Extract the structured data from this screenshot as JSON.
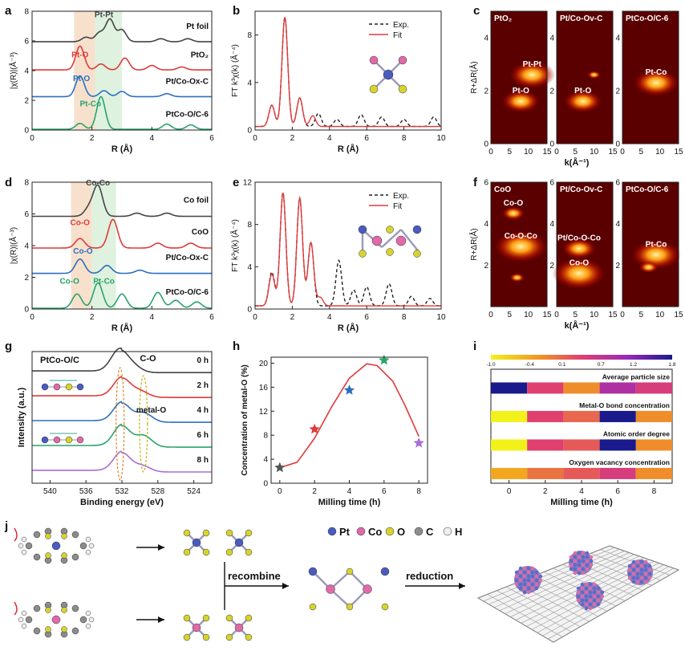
{
  "panel_letters": [
    "a",
    "b",
    "c",
    "d",
    "e",
    "f",
    "g",
    "h",
    "i",
    "j"
  ],
  "chart_data": [
    {
      "id": "a",
      "type": "line",
      "xlabel": "R (Å)",
      "ylabel": "|χ(R)|(Å⁻³)",
      "xlim": [
        0,
        6
      ],
      "ylim": [
        0,
        8
      ],
      "xticks": [
        "0",
        "2",
        "4",
        "6"
      ],
      "yticks": [
        "0",
        "2",
        "4",
        "6",
        "8"
      ],
      "series": [
        {
          "name": "Pt foil",
          "color": "#444444",
          "offset": 5.9,
          "peaks": [
            [
              1.8,
              0.3
            ],
            [
              2.25,
              0.6
            ],
            [
              2.6,
              1.5
            ],
            [
              3.0,
              0.8
            ],
            [
              4.3,
              0.2
            ],
            [
              5.2,
              0.2
            ]
          ]
        },
        {
          "name": "PtO₂",
          "color": "#e03a3a",
          "offset": 4.0,
          "peaks": [
            [
              1.6,
              1.6
            ],
            [
              2.3,
              0.4
            ],
            [
              3.1,
              0.8
            ],
            [
              4.0,
              0.3
            ],
            [
              5.0,
              0.2
            ]
          ]
        },
        {
          "name": "Pt/Co-Ox-C",
          "color": "#2e6fbf",
          "offset": 2.2,
          "peaks": [
            [
              1.6,
              1.4
            ],
            [
              2.4,
              0.4
            ],
            [
              3.0,
              0.35
            ],
            [
              4.5,
              0.2
            ]
          ]
        },
        {
          "name": "PtCo-O/C-6",
          "color": "#2aa36a",
          "offset": 0.0,
          "peaks": [
            [
              1.6,
              0.4
            ],
            [
              2.3,
              2.2
            ],
            [
              4.5,
              0.35
            ],
            [
              5.3,
              0.3
            ]
          ]
        }
      ],
      "annotations": [
        {
          "text": "Pt-Pt",
          "x": 2.4,
          "y": 7.6
        },
        {
          "text": "Pt-O",
          "x": 1.6,
          "y": 4.9
        },
        {
          "text": "Pt-O",
          "x": 1.65,
          "y": 3.3
        },
        {
          "text": "Pt-Co",
          "x": 1.95,
          "y": 1.6
        }
      ],
      "shaded_regions": [
        {
          "from": 1.4,
          "to": 2.1,
          "color": "#f6dcc4"
        },
        {
          "from": 2.1,
          "to": 3.0,
          "color": "#d9efd9"
        }
      ]
    },
    {
      "id": "b",
      "type": "line",
      "xlabel": "R (Å)",
      "ylabel": "FT k³χ(k) (Å⁻⁴)",
      "xlim": [
        0,
        10
      ],
      "ylim": [
        0,
        10
      ],
      "xticks": [
        "0",
        "2",
        "4",
        "6",
        "8",
        "10"
      ],
      "yticks": [
        "0",
        "4",
        "8"
      ],
      "legend": [
        "Exp.",
        "Fit"
      ],
      "series": [
        {
          "name": "Exp.",
          "color": "#222222",
          "style": "dashed",
          "peaks": [
            [
              0.9,
              1.8
            ],
            [
              1.6,
              9.2
            ],
            [
              2.4,
              2.4
            ],
            [
              3.4,
              1.1
            ],
            [
              4.4,
              0.6
            ],
            [
              5.7,
              1.0
            ],
            [
              6.8,
              0.8
            ],
            [
              8.0,
              0.6
            ],
            [
              9.6,
              0.8
            ]
          ]
        },
        {
          "name": "Fit",
          "color": "#e03a3a",
          "style": "solid",
          "peaks": [
            [
              0.9,
              1.8
            ],
            [
              1.6,
              9.2
            ],
            [
              2.4,
              2.4
            ],
            [
              3.1,
              0.9
            ]
          ]
        }
      ]
    },
    {
      "id": "c",
      "type": "heatmap",
      "xlabel": "k(Å⁻¹)",
      "ylabel": "R+ΔR(Å)",
      "xlim": [
        0,
        15
      ],
      "ylim": [
        0,
        5
      ],
      "xticks": [
        "0",
        "5",
        "10",
        "15"
      ],
      "yticks": [
        "0",
        "2",
        "4"
      ],
      "panels": [
        {
          "name": "PtO₂",
          "labels": [
            "Pt-Pt",
            "Pt-O"
          ],
          "blobs": [
            [
              11,
              2.6,
              1.2
            ],
            [
              8,
              1.6,
              1.0
            ]
          ]
        },
        {
          "name": "Pt/Co-Ov-C",
          "labels": [
            "Pt-O"
          ],
          "blobs": [
            [
              7,
              1.6,
              1.0
            ],
            [
              10,
              2.6,
              0.35
            ]
          ]
        },
        {
          "name": "PtCo-O/C-6",
          "labels": [
            "Pt-Co"
          ],
          "blobs": [
            [
              9,
              2.3,
              1.2
            ]
          ]
        }
      ]
    },
    {
      "id": "d",
      "type": "line",
      "xlabel": "R (Å)",
      "ylabel": "|χ(R)|(Å⁻³)",
      "xlim": [
        0,
        6
      ],
      "ylim": [
        0,
        8
      ],
      "xticks": [
        "0",
        "2",
        "4",
        "6"
      ],
      "yticks": [
        "0",
        "2",
        "4",
        "6",
        "8"
      ],
      "series": [
        {
          "name": "Co foil",
          "color": "#444444",
          "offset": 5.8,
          "peaks": [
            [
              1.9,
              0.5
            ],
            [
              2.2,
              1.9
            ],
            [
              3.5,
              0.2
            ],
            [
              4.5,
              0.2
            ]
          ]
        },
        {
          "name": "CoO",
          "color": "#e03a3a",
          "offset": 3.8,
          "peaks": [
            [
              1.6,
              0.6
            ],
            [
              2.7,
              1.8
            ],
            [
              4.2,
              0.3
            ],
            [
              5.3,
              0.3
            ]
          ]
        },
        {
          "name": "Pt/Co-Ox-C",
          "color": "#2e6fbf",
          "offset": 2.2,
          "peaks": [
            [
              1.6,
              0.9
            ],
            [
              2.5,
              0.5
            ],
            [
              3.6,
              0.2
            ]
          ]
        },
        {
          "name": "PtCo-O/C-6",
          "color": "#2aa36a",
          "offset": 0.0,
          "peaks": [
            [
              1.5,
              0.9
            ],
            [
              2.2,
              1.6
            ],
            [
              3.0,
              0.9
            ],
            [
              4.2,
              1.0
            ],
            [
              4.8,
              0.5
            ],
            [
              5.5,
              0.4
            ]
          ]
        }
      ],
      "annotations": [
        {
          "text": "Co-Co",
          "x": 2.2,
          "y": 7.8
        },
        {
          "text": "Co-O",
          "x": 1.6,
          "y": 5.3
        },
        {
          "text": "Co-O",
          "x": 1.7,
          "y": 3.5
        },
        {
          "text": "Co-O",
          "x": 1.25,
          "y": 1.6
        },
        {
          "text": "Pt-Co",
          "x": 2.4,
          "y": 1.6
        }
      ],
      "shaded_regions": [
        {
          "from": 1.3,
          "to": 2.0,
          "color": "#f6dcc4"
        },
        {
          "from": 2.0,
          "to": 2.8,
          "color": "#d9efd9"
        }
      ]
    },
    {
      "id": "e",
      "type": "line",
      "xlabel": "R (Å)",
      "ylabel": "FT k³χ(k) (Å⁻⁴)",
      "xlim": [
        0,
        10
      ],
      "ylim": [
        0,
        12
      ],
      "xticks": [
        "0",
        "2",
        "4",
        "6",
        "8",
        "10"
      ],
      "yticks": [
        "0",
        "4",
        "8",
        "12"
      ],
      "legend": [
        "Exp.",
        "Fit"
      ],
      "series": [
        {
          "name": "Exp.",
          "color": "#222222",
          "style": "dashed",
          "peaks": [
            [
              0.9,
              3.2
            ],
            [
              1.5,
              10.7
            ],
            [
              2.4,
              10.2
            ],
            [
              3.0,
              6.0
            ],
            [
              4.5,
              4.3
            ],
            [
              5.3,
              1.5
            ],
            [
              6.0,
              1.8
            ],
            [
              7.2,
              2.1
            ],
            [
              8.4,
              0.9
            ],
            [
              9.4,
              0.7
            ]
          ]
        },
        {
          "name": "Fit",
          "color": "#e03a3a",
          "style": "solid",
          "peaks": [
            [
              0.9,
              3.0
            ],
            [
              1.5,
              10.7
            ],
            [
              2.4,
              10.2
            ],
            [
              3.0,
              6.0
            ],
            [
              3.5,
              0.8
            ]
          ]
        }
      ]
    },
    {
      "id": "f",
      "type": "heatmap",
      "xlabel": "k(Å⁻¹)",
      "ylabel": "R+ΔR(Å)",
      "xlim": [
        0,
        15
      ],
      "ylim": [
        0,
        6
      ],
      "xticks": [
        "0",
        "5",
        "10",
        "15"
      ],
      "yticks": [
        "2",
        "4",
        "6"
      ],
      "panels": [
        {
          "name": "CoO",
          "labels": [
            "Co-O-Co",
            "Co-O"
          ],
          "blobs": [
            [
              8,
              2.9,
              1.4
            ],
            [
              6,
              4.5,
              0.6
            ],
            [
              7,
              1.4,
              0.4
            ]
          ]
        },
        {
          "name": "Pt/Co-Ov-C",
          "labels": [
            "Pt/Co-O-Co",
            "Co-O"
          ],
          "blobs": [
            [
              6,
              2.8,
              0.9
            ],
            [
              6,
              1.6,
              1.4
            ]
          ]
        },
        {
          "name": "PtCo-O/C-6",
          "labels": [
            "Pt-Co"
          ],
          "blobs": [
            [
              9,
              2.5,
              1.3
            ],
            [
              7,
              1.9,
              0.5
            ]
          ]
        }
      ]
    },
    {
      "id": "g",
      "type": "line",
      "title": "PtCo-O/C",
      "xlabel": "Binding energy (eV)",
      "ylabel": "Intensity (a.u.)",
      "xlim": [
        542,
        522
      ],
      "xticks": [
        "540",
        "536",
        "532",
        "528",
        "524"
      ],
      "series": [
        {
          "name": "0 h",
          "color": "#444444",
          "offset": 4.0,
          "peaks": [
            [
              532.3,
              1.0
            ],
            [
              530.8,
              0.3
            ]
          ]
        },
        {
          "name": "2 h",
          "color": "#e03a3a",
          "offset": 3.0,
          "peaks": [
            [
              532.0,
              0.9
            ],
            [
              530.0,
              0.3
            ]
          ]
        },
        {
          "name": "4 h",
          "color": "#2e6fbf",
          "offset": 2.0,
          "peaks": [
            [
              532.0,
              0.9
            ],
            [
              529.6,
              0.45
            ]
          ]
        },
        {
          "name": "6 h",
          "color": "#2aa36a",
          "offset": 1.0,
          "peaks": [
            [
              532.0,
              1.0
            ],
            [
              529.6,
              0.55
            ]
          ]
        },
        {
          "name": "8 h",
          "color": "#a86ed6",
          "offset": 0.0,
          "peaks": [
            [
              532.0,
              0.9
            ],
            [
              529.8,
              0.3
            ]
          ]
        }
      ],
      "annotations": [
        {
          "text": "C-O"
        },
        {
          "text": "metal-O"
        }
      ]
    },
    {
      "id": "h",
      "type": "scatter",
      "xlabel": "Milling time (h)",
      "ylabel": "Concentration of metal-O (%)",
      "xlim": [
        -0.5,
        8.5
      ],
      "ylim": [
        0,
        21
      ],
      "xticks": [
        "0",
        "2",
        "4",
        "6",
        "8"
      ],
      "yticks": [
        "0",
        "4",
        "8",
        "12",
        "16",
        "20"
      ],
      "x": [
        0,
        2,
        4,
        6,
        8
      ],
      "values": [
        2.6,
        9.0,
        15.5,
        20.5,
        6.7
      ],
      "colors": [
        "#555555",
        "#e03a3a",
        "#2e6fbf",
        "#2aa36a",
        "#a86ed6"
      ],
      "fit_curve": [
        [
          0,
          2.6
        ],
        [
          1,
          3.5
        ],
        [
          2,
          7.5
        ],
        [
          3,
          12.8
        ],
        [
          4,
          17.5
        ],
        [
          5,
          19.9
        ],
        [
          5.6,
          19.6
        ],
        [
          6.5,
          17.0
        ],
        [
          7.2,
          13.0
        ],
        [
          8,
          7.8
        ]
      ]
    },
    {
      "id": "i",
      "type": "heatmap",
      "xlabel": "Milling time (h)",
      "xticks": [
        "0",
        "2",
        "4",
        "6",
        "8"
      ],
      "colorbar_ticks": [
        "-1.0",
        "-0.4",
        "0.1",
        "0.7",
        "1.2",
        "1.8"
      ],
      "rows": [
        {
          "name": "Average particle size",
          "values": [
            1.8,
            0.4,
            -0.2,
            0.9,
            0.5
          ]
        },
        {
          "name": "Metal-O bond concentration",
          "values": [
            -1.0,
            0.4,
            0.1,
            1.8,
            -0.2
          ]
        },
        {
          "name": "Atomic order degree",
          "values": [
            -1.0,
            0.4,
            0.2,
            1.8,
            -0.2
          ]
        },
        {
          "name": "Oxygen vacancy concentration",
          "values": [
            -0.4,
            0.0,
            0.2,
            0.5,
            -0.2
          ]
        }
      ]
    }
  ],
  "schematic_j": {
    "legend": [
      {
        "name": "Pt",
        "color": "#4a5bbf"
      },
      {
        "name": "Co",
        "color": "#e06aa8"
      },
      {
        "name": "O",
        "color": "#d6d330"
      },
      {
        "name": "C",
        "color": "#8c8c8c"
      },
      {
        "name": "H",
        "color": "#eeeeee"
      }
    ],
    "steps": [
      "recombine",
      "reduction"
    ]
  }
}
